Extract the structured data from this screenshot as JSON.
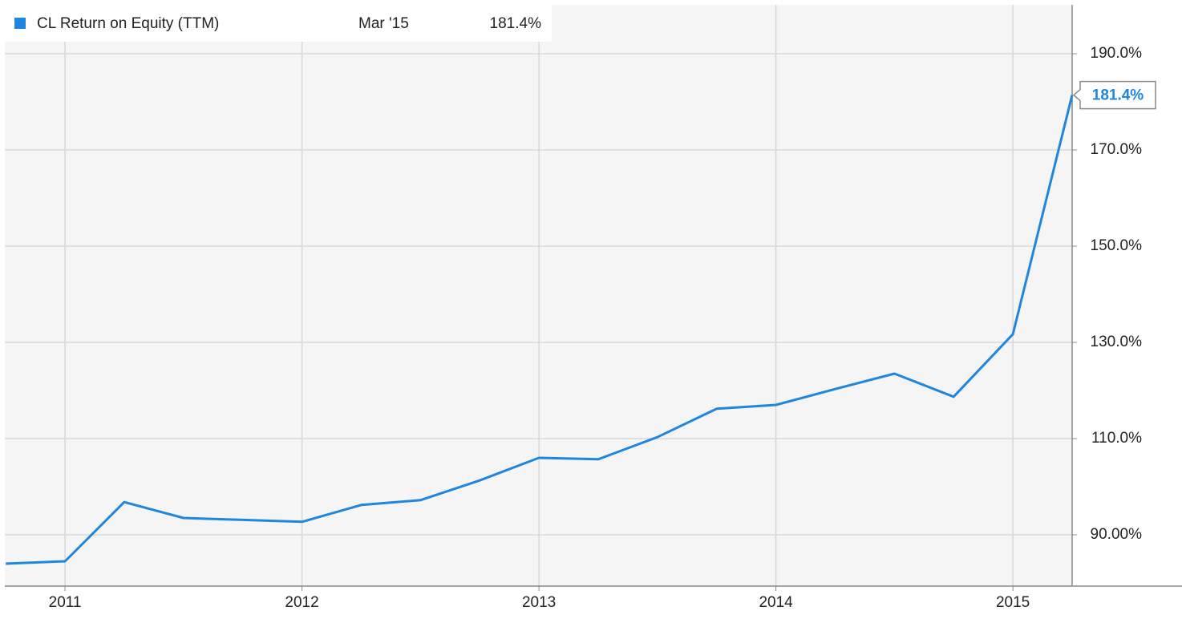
{
  "chart_data": {
    "type": "line",
    "x": [
      2010.75,
      2011.0,
      2011.25,
      2011.5,
      2011.75,
      2012.0,
      2012.25,
      2012.5,
      2012.75,
      2013.0,
      2013.25,
      2013.5,
      2013.75,
      2014.0,
      2014.25,
      2014.5,
      2014.75,
      2015.0,
      2015.25
    ],
    "series": [
      {
        "name": "CL Return on Equity (TTM)",
        "color": "#1f86e0",
        "values": [
          84.0,
          84.5,
          96.8,
          93.5,
          93.1,
          92.7,
          96.2,
          97.2,
          101.3,
          106.0,
          105.7,
          110.3,
          116.2,
          117.0,
          120.3,
          123.5,
          118.7,
          131.7,
          181.4
        ]
      }
    ],
    "legend": {
      "date": "Mar '15",
      "value_label": "181.4%"
    },
    "xlim": [
      2010.746,
      2015.25
    ],
    "xticks": [
      2011,
      2012,
      2013,
      2014,
      2015
    ],
    "ylim": [
      79.33,
      200.17
    ],
    "yticks": [
      {
        "value": 90,
        "label": "90.00%"
      },
      {
        "value": 110,
        "label": "110.0%"
      },
      {
        "value": 130,
        "label": "130.0%"
      },
      {
        "value": 150,
        "label": "150.0%"
      },
      {
        "value": 170,
        "label": "170.0%"
      },
      {
        "value": 190,
        "label": "190.0%"
      }
    ],
    "grid": true
  }
}
